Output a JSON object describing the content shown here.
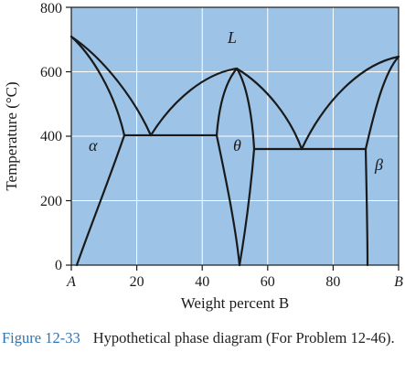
{
  "diagram": {
    "background": "#9dc3e6",
    "grid_color": "#ffffff",
    "line_color": "#1a1a1a",
    "y_axis_title": "Temperature (°C)",
    "x_axis_title": "Weight percent B",
    "y_ticks": [
      "0",
      "200",
      "400",
      "600",
      "800"
    ],
    "x_ticks": [
      "A",
      "20",
      "40",
      "60",
      "80",
      "B"
    ],
    "phase_labels": {
      "liquid": "L",
      "alpha": "α",
      "theta": "θ",
      "beta": "β"
    }
  },
  "caption": {
    "figure_number": "Figure 12-33",
    "text": "Hypothetical phase diagram (For Problem 12-46)."
  }
}
